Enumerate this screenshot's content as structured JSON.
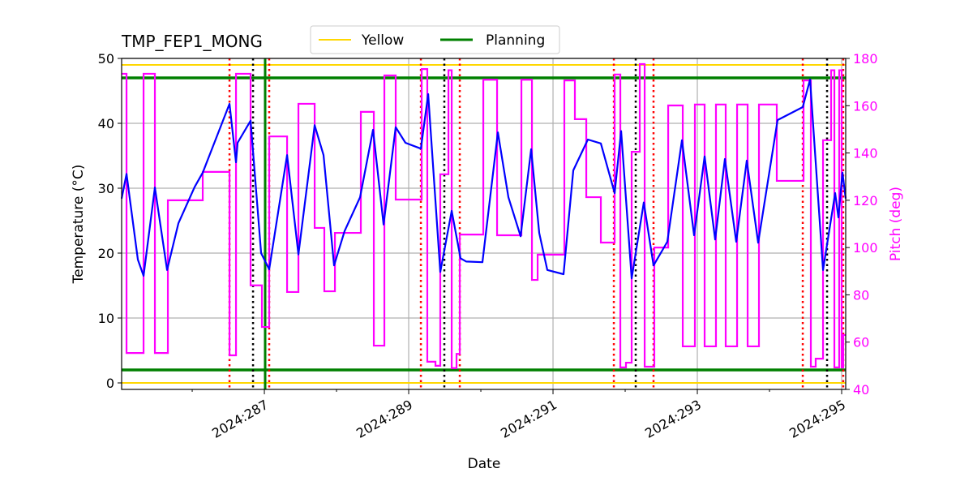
{
  "chart_data": {
    "type": "line",
    "title": "TMP_FEP1_MONG",
    "xlabel": "Date",
    "ylabel": "Temperature (°C)",
    "ylabel_right": "Pitch (deg)",
    "xlim": [
      285.022,
      295.056
    ],
    "ylim": [
      -1,
      50
    ],
    "ylim_right": [
      40,
      180
    ],
    "x_ticks": [
      {
        "value": 287,
        "label": "2024:287"
      },
      {
        "value": 289,
        "label": "2024:289"
      },
      {
        "value": 291,
        "label": "2024:291"
      },
      {
        "value": 293,
        "label": "2024:293"
      },
      {
        "value": 295,
        "label": "2024:295"
      }
    ],
    "x_minor_ticks": [
      286,
      288,
      290,
      292,
      294
    ],
    "y_ticks": [
      0,
      10,
      20,
      30,
      40,
      50
    ],
    "y_ticks_right": [
      40,
      60,
      80,
      100,
      120,
      140,
      160,
      180
    ],
    "grid": true,
    "legend": {
      "placement": "top-center",
      "entries": [
        "Yellow",
        "Planning"
      ]
    },
    "colors": {
      "temperature": "#0000ff",
      "pitch": "#ff00ff",
      "yellow": "#ffd700",
      "planning": "#008000",
      "red_marker": "#ff0000",
      "black_marker": "#000000",
      "pitch_axis": "#ff00ff"
    },
    "limits": [
      {
        "name": "Yellow",
        "values": [
          49,
          0
        ],
        "color": "#ffd700"
      },
      {
        "name": "Planning",
        "values": [
          47,
          2
        ],
        "color": "#008000"
      }
    ],
    "vertical_lines": {
      "red_dotted": [
        286.517,
        287.067,
        289.169,
        289.708,
        291.843,
        292.393,
        294.461,
        295.022
      ],
      "black_dotted": [
        286.843,
        289.494,
        292.146,
        294.798
      ],
      "green_solid": [
        287.011
      ]
    },
    "temperature": {
      "x": [
        285.022,
        285.09,
        285.247,
        285.326,
        285.483,
        285.652,
        285.809,
        286.034,
        286.146,
        286.517,
        286.607,
        286.629,
        286.809,
        286.955,
        287.067,
        287.315,
        287.472,
        287.697,
        287.82,
        287.966,
        288.112,
        288.326,
        288.506,
        288.652,
        288.82,
        288.955,
        289.169,
        289.27,
        289.438,
        289.596,
        289.719,
        289.798,
        290.022,
        290.236,
        290.382,
        290.551,
        290.697,
        290.809,
        290.921,
        291.146,
        291.281,
        291.483,
        291.663,
        291.854,
        291.944,
        292.09,
        292.258,
        292.393,
        292.584,
        292.787,
        292.955,
        293.101,
        293.247,
        293.382,
        293.539,
        293.685,
        293.843,
        294.112,
        294.461,
        294.562,
        294.742,
        294.91,
        294.955,
        295.011,
        295.056
      ],
      "y": [
        28.4,
        32.2,
        19.0,
        16.5,
        30.1,
        17.4,
        24.6,
        30.2,
        32.4,
        43.0,
        34.0,
        37.0,
        40.4,
        20.0,
        17.5,
        35.1,
        19.8,
        39.7,
        35.1,
        18.1,
        23.4,
        28.6,
        39.0,
        24.4,
        39.4,
        37.0,
        36.1,
        44.5,
        17.1,
        26.5,
        19.2,
        18.7,
        18.6,
        38.6,
        28.6,
        22.6,
        36.0,
        23.1,
        17.4,
        16.75,
        32.75,
        37.5,
        36.9,
        29.25,
        38.8,
        16.1,
        27.8,
        18.1,
        21.75,
        37.4,
        22.75,
        34.9,
        22.1,
        34.5,
        21.75,
        34.25,
        21.6,
        40.5,
        42.5,
        46.75,
        17.4,
        29.25,
        25.5,
        32.4,
        28.4
      ]
    },
    "pitch": {
      "step": "post",
      "x": [
        285.022,
        285.09,
        285.326,
        285.483,
        285.663,
        286.146,
        286.517,
        286.607,
        286.809,
        286.966,
        287.067,
        287.315,
        287.472,
        287.697,
        287.831,
        287.978,
        288.337,
        288.517,
        288.663,
        288.82,
        289.18,
        289.258,
        289.371,
        289.438,
        289.551,
        289.596,
        289.663,
        289.708,
        290.034,
        290.225,
        290.562,
        290.708,
        290.787,
        291.157,
        291.303,
        291.461,
        291.663,
        291.854,
        291.933,
        292.011,
        292.09,
        292.202,
        292.27,
        292.404,
        292.596,
        292.798,
        292.966,
        293.101,
        293.258,
        293.393,
        293.551,
        293.697,
        293.854,
        294.101,
        294.472,
        294.573,
        294.64,
        294.742,
        294.854,
        294.899,
        294.966,
        295.0,
        295.022,
        295.056
      ],
      "y": [
        173.5,
        55.4,
        173.5,
        55.4,
        120,
        132,
        54.4,
        173.5,
        84,
        66.4,
        147,
        81.2,
        160.8,
        108.3,
        81.5,
        106.2,
        157.4,
        58.5,
        172.8,
        120.3,
        175.5,
        51.7,
        50,
        131,
        175,
        49,
        55,
        105.5,
        171,
        105.2,
        171,
        86.3,
        97,
        170.7,
        154.3,
        121.3,
        102.1,
        173.2,
        49.3,
        51.3,
        140.5,
        177.6,
        49.6,
        100,
        160.1,
        58.2,
        160.5,
        58.2,
        160.5,
        58.2,
        160.5,
        58.2,
        160.5,
        128.2,
        170.7,
        49.6,
        53,
        145.4,
        175,
        49.3,
        175,
        49.3,
        63,
        63
      ]
    }
  }
}
